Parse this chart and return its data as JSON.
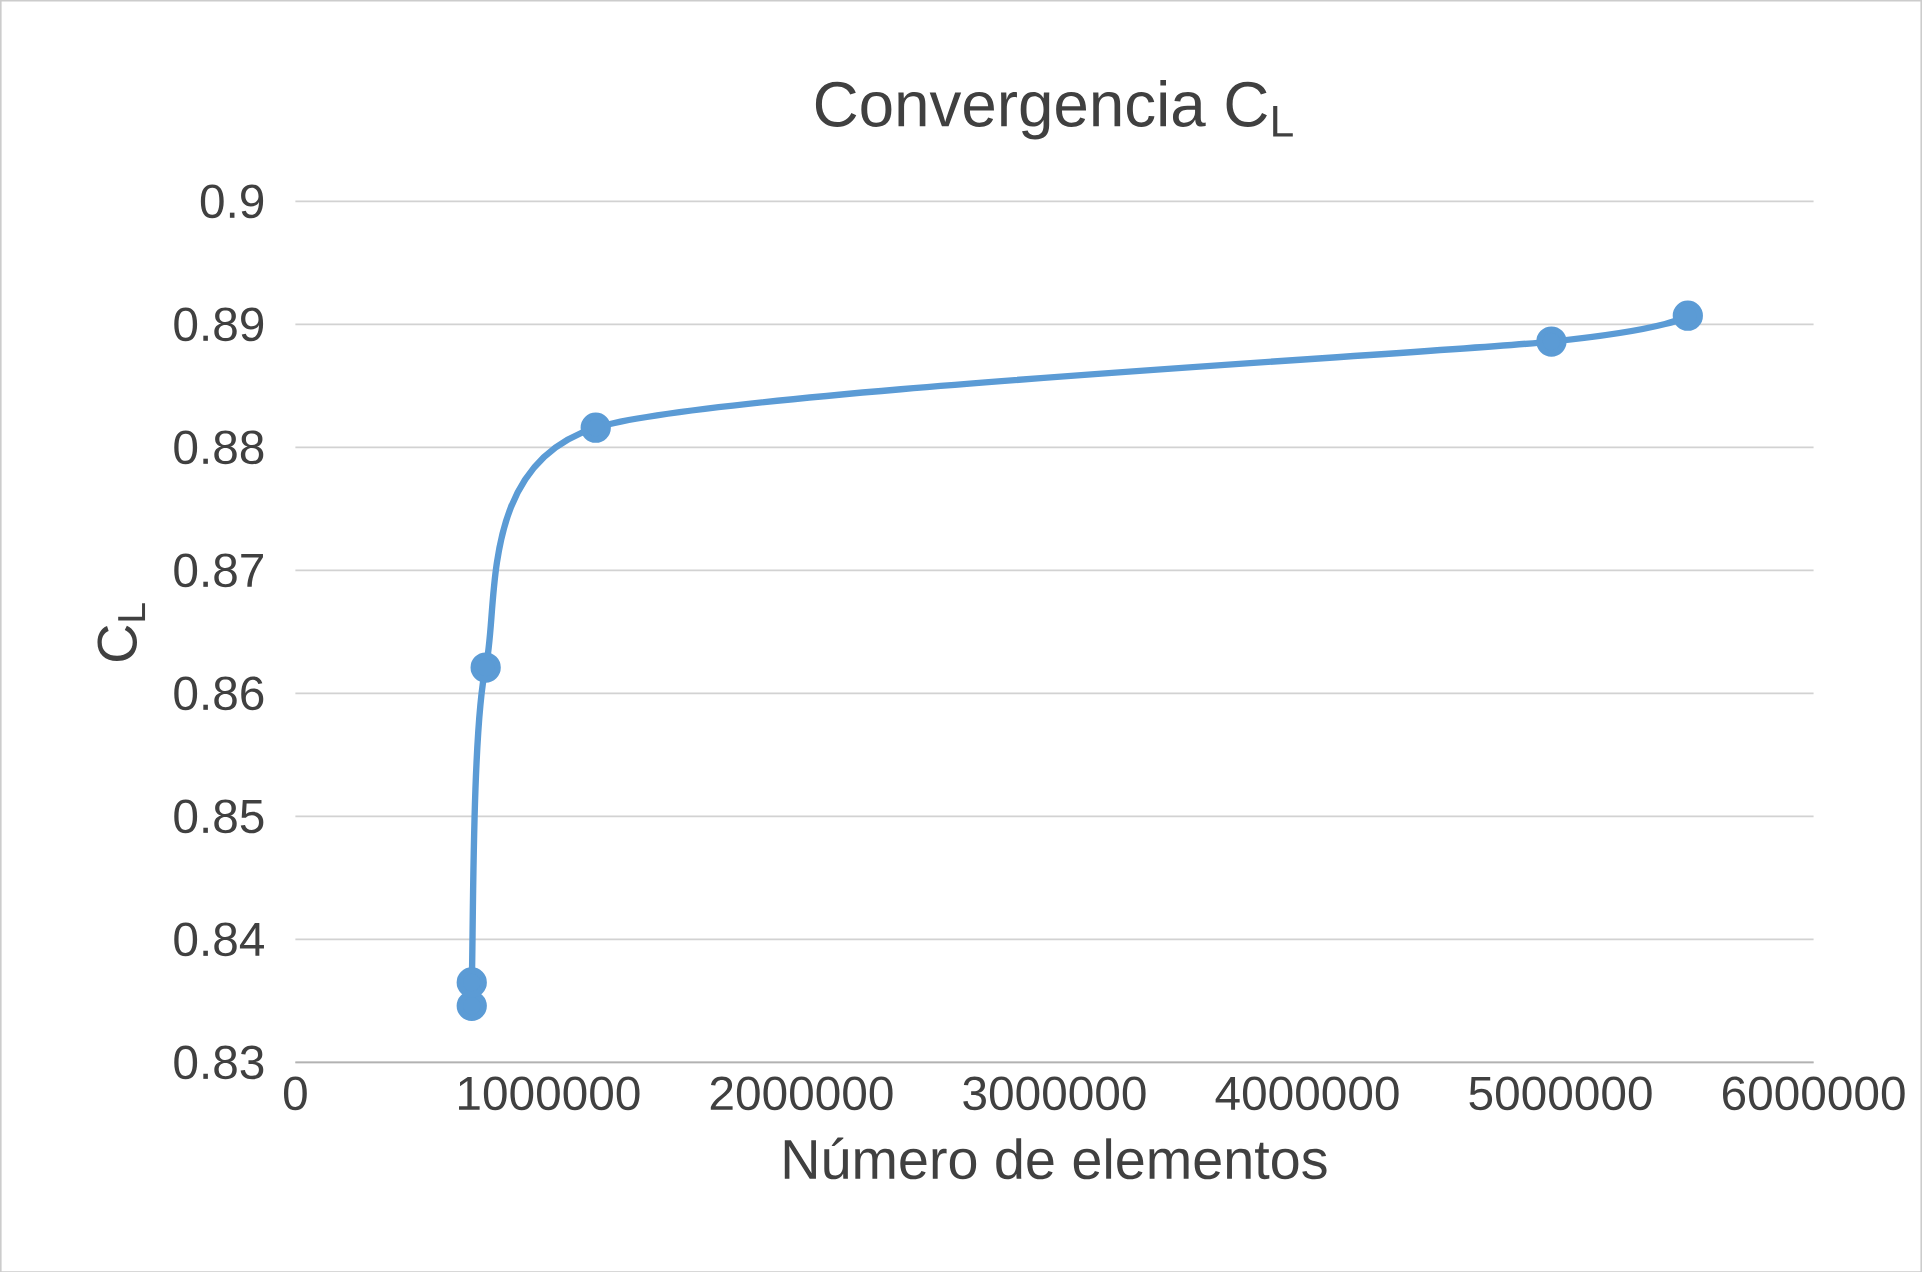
{
  "chart_data": {
    "type": "line",
    "title": "Convergencia C$_{L}$",
    "xlabel": "Número de elementos",
    "ylabel": "C$_{L}$",
    "series": [
      {
        "color": "#5b9bd5",
        "x": [
          697000,
          697000,
          752000,
          1187000,
          4964000,
          5503000
        ],
        "values": [
          0.8346,
          0.8365,
          0.8621,
          0.8816,
          0.8886,
          0.8907
        ]
      }
    ],
    "xlim": [
      0,
      6000000
    ],
    "xticks": [
      0,
      1000000,
      2000000,
      3000000,
      4000000,
      5000000,
      6000000
    ],
    "ylim": [
      0.83,
      0.9
    ],
    "yticks": [
      0.83,
      0.84,
      0.85,
      0.86,
      0.87,
      0.88,
      0.89,
      0.9
    ],
    "grid": "y",
    "marker": "circle",
    "line_style": "solid"
  }
}
